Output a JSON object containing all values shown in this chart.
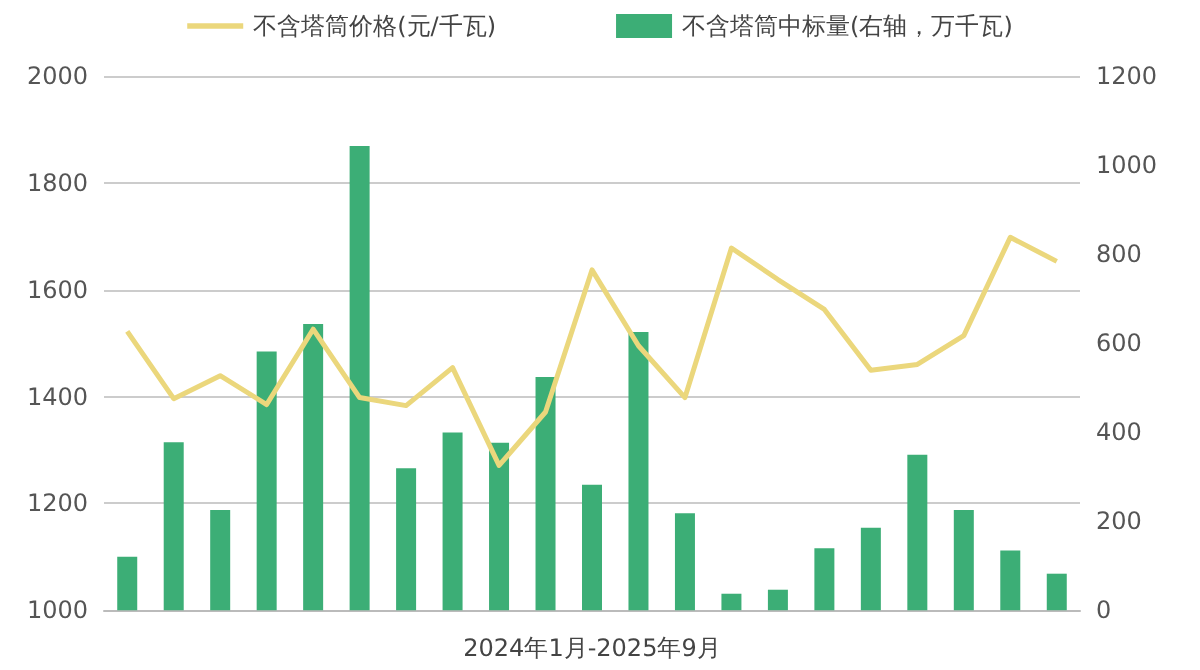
{
  "chart_data": {
    "type": "bar",
    "xlabel": "2024年1月-2025年9月",
    "categories": [
      null,
      null,
      null,
      null,
      null,
      null,
      null,
      null,
      null,
      null,
      null,
      null,
      null,
      null,
      null,
      null,
      null,
      null,
      null,
      null,
      null
    ],
    "series": [
      {
        "name": "不含塔筒价格(元/千瓦)",
        "type": "line",
        "color": "#ebd77c",
        "values": [
          1522,
          1396,
          1439,
          1385,
          1526,
          1398,
          1383,
          1454,
          1271,
          1371,
          1637,
          1495,
          1398,
          1678,
          1619,
          1563,
          1449,
          1460,
          1514,
          1698,
          1653
        ]
      },
      {
        "name": "不含塔筒中标量(右轴，万千瓦)",
        "axis": "y2",
        "color": "#3cae76",
        "values": [
          120,
          377,
          225,
          581,
          643,
          1043,
          319,
          399,
          376,
          524,
          282,
          625,
          218,
          37,
          46,
          139,
          185,
          349,
          225,
          134,
          82
        ]
      }
    ],
    "ylim": [
      1000,
      2000
    ],
    "yticks": [
      1000,
      1200,
      1400,
      1600,
      1800,
      2000
    ],
    "y2lim": [
      0,
      1200
    ],
    "y2ticks": [
      0,
      200,
      400,
      600,
      800,
      1000,
      1200
    ],
    "grid": "y",
    "legend": "top",
    "marker": "none"
  }
}
